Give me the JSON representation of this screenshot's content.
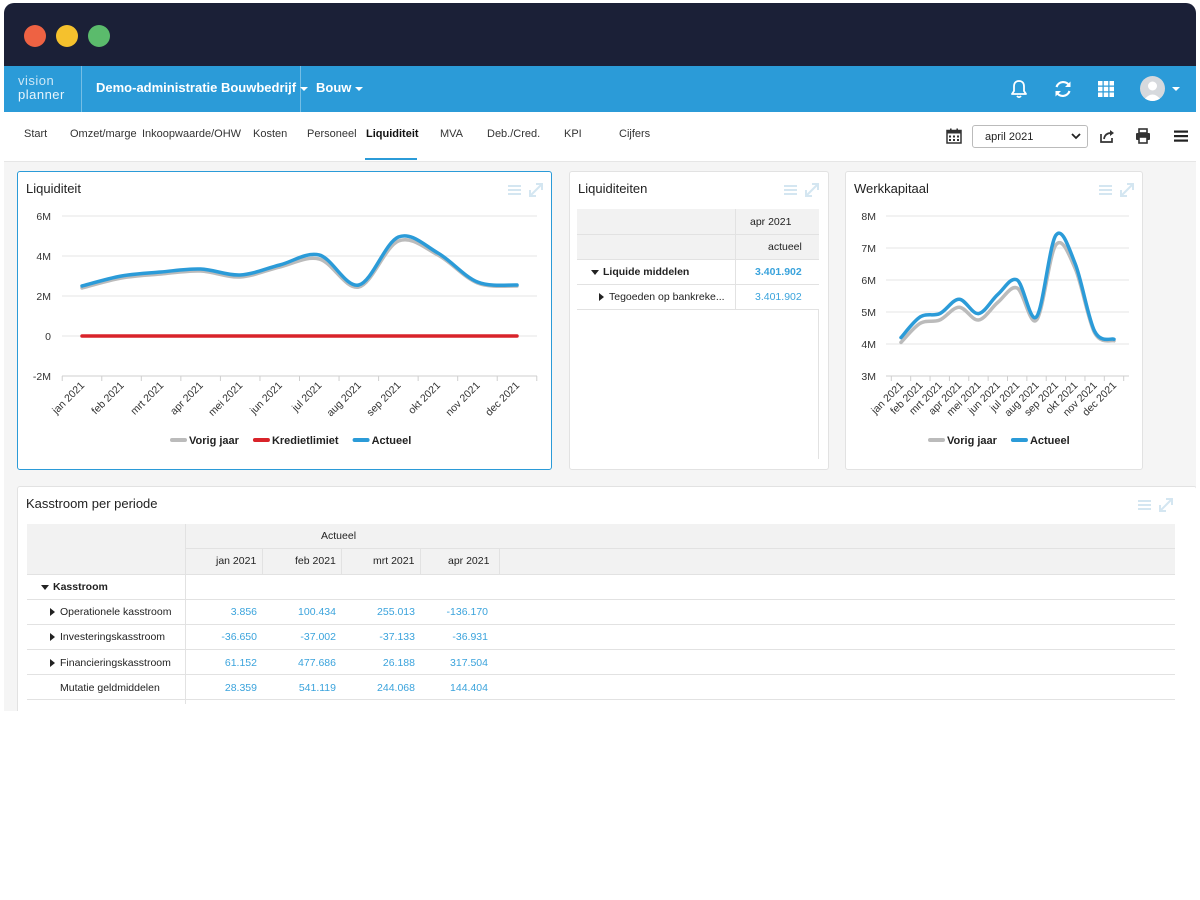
{
  "app": {
    "logo_line1": "vision",
    "logo_line2": "planner",
    "administration": "Demo-administratie Bouwbedrijf",
    "sector": "Bouw"
  },
  "topnav_icons": [
    "bell-icon",
    "refresh-icon",
    "apps-grid-icon",
    "user-avatar-icon"
  ],
  "tabs": [
    {
      "label": "Start",
      "active": false
    },
    {
      "label": "Omzet/marge",
      "active": false
    },
    {
      "label": "Inkoopwaarde/OHW",
      "active": false
    },
    {
      "label": "Kosten",
      "active": false
    },
    {
      "label": "Personeel",
      "active": false
    },
    {
      "label": "Liquiditeit",
      "active": true
    },
    {
      "label": "MVA",
      "active": false
    },
    {
      "label": "Deb./Cred.",
      "active": false
    },
    {
      "label": "KPI",
      "active": false
    },
    {
      "label": "Cijfers",
      "active": false
    }
  ],
  "period": {
    "selected": "april 2021"
  },
  "colors": {
    "accent": "#2b9bd8",
    "series_current": "#2b9bd8",
    "series_previous": "#bbbbbb",
    "credit_limit": "#d9232a",
    "value_text": "#3aa3dc"
  },
  "cards": {
    "liquiditeit": {
      "title": "Liquiditeit"
    },
    "liquiditeiten": {
      "title": "Liquiditeiten"
    },
    "werkkapitaal": {
      "title": "Werkkapitaal"
    },
    "kasstroom": {
      "title": "Kasstroom per periode"
    }
  },
  "chart_data": [
    {
      "type": "line",
      "title": "Liquiditeit",
      "x": [
        "jan 2021",
        "feb 2021",
        "mrt 2021",
        "apr 2021",
        "mei 2021",
        "jun 2021",
        "jul 2021",
        "aug 2021",
        "sep 2021",
        "okt 2021",
        "nov 2021",
        "dec 2021"
      ],
      "yticks": [
        "6M",
        "4M",
        "2M",
        "0",
        "-2M"
      ],
      "ylim": [
        -2000000,
        6000000
      ],
      "legend_position": "bottom",
      "grid": true,
      "series": [
        {
          "name": "Vorig jaar",
          "color": "#bbbbbb",
          "values": [
            2400000,
            2900000,
            3100000,
            3250000,
            2950000,
            3450000,
            3850000,
            2450000,
            4750000,
            4050000,
            2650000,
            2500000
          ]
        },
        {
          "name": "Kredietlimiet",
          "color": "#d9232a",
          "values": [
            0,
            0,
            0,
            0,
            0,
            0,
            0,
            0,
            0,
            0,
            0,
            0
          ]
        },
        {
          "name": "Actueel",
          "color": "#2b9bd8",
          "values": [
            2500000,
            3000000,
            3200000,
            3350000,
            3050000,
            3550000,
            4050000,
            2550000,
            4950000,
            4150000,
            2700000,
            2550000
          ]
        }
      ]
    },
    {
      "type": "line",
      "title": "Werkkapitaal",
      "x": [
        "jan 2021",
        "feb 2021",
        "mrt 2021",
        "apr 2021",
        "mei 2021",
        "jun 2021",
        "jul 2021",
        "aug 2021",
        "sep 2021",
        "okt 2021",
        "nov 2021",
        "dec 2021"
      ],
      "yticks": [
        "8M",
        "7M",
        "6M",
        "5M",
        "4M",
        "3M"
      ],
      "ylim": [
        3000000,
        8000000
      ],
      "legend_position": "bottom",
      "grid": true,
      "series": [
        {
          "name": "Vorig jaar",
          "color": "#bbbbbb",
          "values": [
            4050000,
            4650000,
            4750000,
            5150000,
            4750000,
            5300000,
            5750000,
            4750000,
            7100000,
            6350000,
            4350000,
            4100000
          ]
        },
        {
          "name": "Actueel",
          "color": "#2b9bd8",
          "values": [
            4200000,
            4850000,
            4950000,
            5400000,
            4950000,
            5550000,
            6000000,
            4850000,
            7400000,
            6500000,
            4400000,
            4150000
          ]
        }
      ]
    }
  ],
  "liquiditeiten_table": {
    "col_period": "apr 2021",
    "col_type": "actueel",
    "rows": [
      {
        "label": "Liquide middelen",
        "value": "3.401.902",
        "bold": true,
        "expanded": true
      },
      {
        "label": "Tegoeden op bankreke...",
        "value": "3.401.902",
        "bold": false,
        "expanded": false
      }
    ]
  },
  "kasstroom_table": {
    "group_header": "Actueel",
    "columns": [
      "jan 2021",
      "feb 2021",
      "mrt 2021",
      "apr 2021"
    ],
    "section": "Kasstroom",
    "rows": [
      {
        "label": "Operationele kasstroom",
        "values": [
          "3.856",
          "100.434",
          "255.013",
          "-136.170"
        ]
      },
      {
        "label": "Investeringskasstroom",
        "values": [
          "-36.650",
          "-37.002",
          "-37.133",
          "-36.931"
        ]
      },
      {
        "label": "Financieringskasstroom",
        "values": [
          "61.152",
          "477.686",
          "26.188",
          "317.504"
        ]
      },
      {
        "label": "Mutatie geldmiddelen",
        "values": [
          "28.359",
          "541.119",
          "244.068",
          "144.404"
        ]
      }
    ]
  }
}
